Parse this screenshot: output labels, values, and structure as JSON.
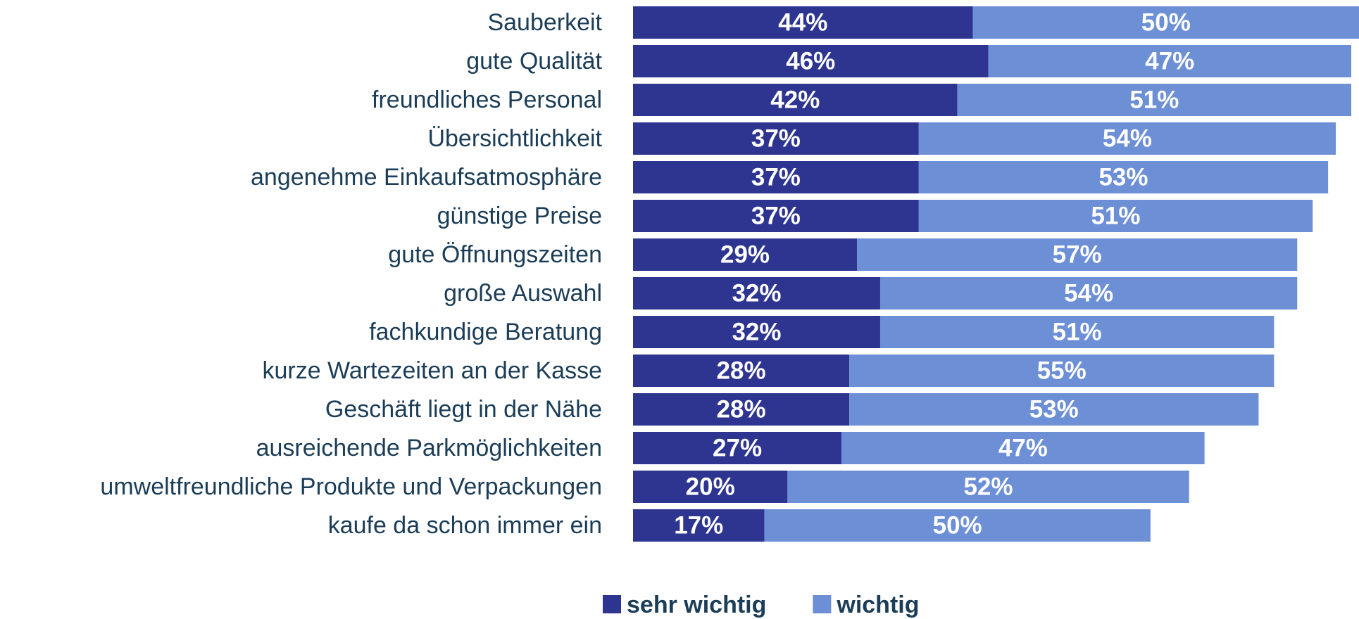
{
  "chart_data": {
    "type": "stacked-bar-horizontal",
    "categories": [
      "Sauberkeit",
      "gute Qualität",
      "freundliches Personal",
      "Übersichtlichkeit",
      "angenehme Einkaufsatmosphäre",
      "günstige Preise",
      "gute Öffnungszeiten",
      "große Auswahl",
      "fachkundige Beratung",
      "kurze Wartezeiten an der Kasse",
      "Geschäft liegt in der Nähe",
      "ausreichende Parkmöglichkeiten",
      "umweltfreundliche Produkte und Verpackungen",
      "kaufe da schon immer ein"
    ],
    "series": [
      {
        "name": "sehr wichtig",
        "color": "#2e3590",
        "values": [
          44,
          46,
          42,
          37,
          37,
          37,
          29,
          32,
          32,
          28,
          28,
          27,
          20,
          17
        ],
        "value_labels": [
          "44%",
          "46%",
          "42%",
          "37%",
          "37%",
          "37%",
          "29%",
          "32%",
          "32%",
          "28%",
          "28%",
          "27%",
          "20%",
          "17%"
        ]
      },
      {
        "name": "wichtig",
        "color": "#6c8fd6",
        "values": [
          50,
          47,
          51,
          54,
          53,
          51,
          57,
          54,
          51,
          55,
          53,
          47,
          52,
          50
        ],
        "value_labels": [
          "50%",
          "47%",
          "51%",
          "54%",
          "53%",
          "51%",
          "57%",
          "54%",
          "51%",
          "55%",
          "53%",
          "47%",
          "52%",
          "50%"
        ]
      }
    ],
    "legend": "bottom"
  }
}
